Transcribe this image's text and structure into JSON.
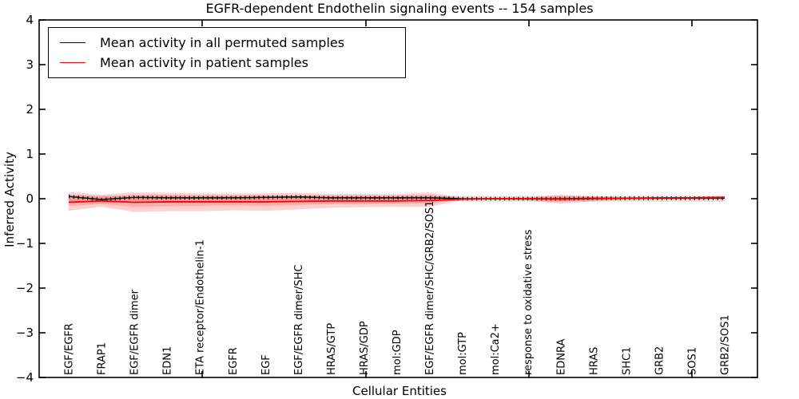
{
  "title": "EGFR-dependent Endothelin signaling events -- 154 samples",
  "legend": {
    "items": [
      {
        "label": "Mean activity in all permuted samples",
        "color": "#000000"
      },
      {
        "label": "Mean activity in patient samples",
        "color": "#ff0000"
      }
    ]
  },
  "chart_data": {
    "type": "line",
    "title": "EGFR-dependent Endothelin signaling events -- 154 samples",
    "xlabel": "Cellular Entities",
    "ylabel": "Inferred Activity",
    "ylim": [
      -4,
      4
    ],
    "yticks": [
      -4,
      -3,
      -2,
      -1,
      0,
      1,
      2,
      3,
      4
    ],
    "grid": false,
    "legend_position": "upper left",
    "categories": [
      "EGF/EGFR",
      "FRAP1",
      "EGF/EGFR dimer",
      "EDN1",
      "ETA receptor/Endothelin-1",
      "EGFR",
      "EGF",
      "EGF/EGFR dimer/SHC",
      "HRAS/GTP",
      "HRAS/GDP",
      "mol:GDP",
      "EGF/EGFR dimer/SHC/GRB2/SOS1",
      "mol:GTP",
      "mol:Ca2+",
      "response to oxidative stress",
      "EDNRA",
      "HRAS",
      "SHC1",
      "GRB2",
      "SOS1",
      "GRB2/SOS1"
    ],
    "series": [
      {
        "name": "Mean activity in all permuted samples",
        "color": "#000000",
        "style": "solid-with-tick-markers",
        "values": [
          0.05,
          -0.02,
          0.03,
          0.02,
          0.02,
          0.02,
          0.03,
          0.04,
          0.02,
          0.02,
          0.02,
          0.02,
          0.0,
          0.0,
          0.0,
          0.0,
          0.01,
          0.01,
          0.01,
          0.01,
          0.01
        ]
      },
      {
        "name": "Mean activity in patient samples",
        "color": "#ff0000",
        "style": "solid",
        "values": [
          -0.08,
          -0.05,
          -0.08,
          -0.07,
          -0.07,
          -0.07,
          -0.07,
          -0.06,
          -0.05,
          -0.05,
          -0.05,
          -0.04,
          -0.01,
          0.0,
          0.0,
          -0.01,
          0.0,
          0.01,
          0.02,
          0.02,
          0.03
        ]
      }
    ],
    "bands": [
      {
        "name": "permuted-range-band",
        "color": "#000000",
        "opacity": 0.12,
        "upper": 0.065,
        "lower": -0.065
      },
      {
        "name": "patient-outer-band",
        "color": "#ff2a2a",
        "opacity": 0.22,
        "upper": [
          0.15,
          0.09,
          0.14,
          0.13,
          0.12,
          0.12,
          0.12,
          0.13,
          0.11,
          0.11,
          0.1,
          0.14,
          0.02,
          0.02,
          0.03,
          0.09,
          0.05,
          0.03,
          0.03,
          0.04,
          0.05
        ],
        "lower": [
          -0.27,
          -0.18,
          -0.3,
          -0.28,
          -0.28,
          -0.26,
          -0.27,
          -0.24,
          -0.2,
          -0.19,
          -0.18,
          -0.18,
          -0.03,
          -0.02,
          -0.04,
          -0.11,
          -0.06,
          -0.02,
          -0.01,
          -0.01,
          0.0
        ]
      },
      {
        "name": "patient-inner-band",
        "color": "#ff2a2a",
        "opacity": 0.22,
        "upper": [
          0.09,
          0.05,
          0.08,
          0.08,
          0.07,
          0.07,
          0.07,
          0.08,
          0.06,
          0.06,
          0.06,
          0.08,
          0.01,
          0.01,
          0.02,
          0.05,
          0.03,
          0.02,
          0.02,
          0.03,
          0.04
        ],
        "lower": [
          -0.16,
          -0.12,
          -0.18,
          -0.17,
          -0.16,
          -0.15,
          -0.16,
          -0.14,
          -0.12,
          -0.12,
          -0.11,
          -0.11,
          -0.02,
          -0.01,
          -0.02,
          -0.06,
          -0.03,
          -0.01,
          0.0,
          0.0,
          0.01
        ]
      }
    ]
  }
}
